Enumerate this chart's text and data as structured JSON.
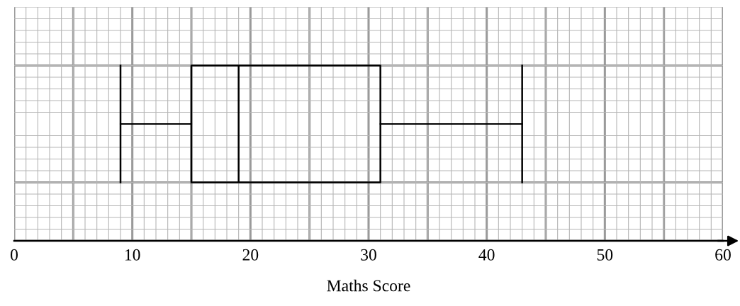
{
  "chart_data": {
    "type": "box",
    "orientation": "horizontal",
    "xlabel": "Maths Score",
    "categories": [
      null
    ],
    "boxes": [
      {
        "low": 9,
        "q1": 15,
        "median": 19,
        "q3": 31,
        "high": 43
      }
    ],
    "color": "#000000",
    "xlim": [
      0,
      60
    ],
    "xticks": [
      0,
      10,
      20,
      30,
      40,
      50,
      60
    ],
    "tick_labels": "x",
    "grid": true
  }
}
